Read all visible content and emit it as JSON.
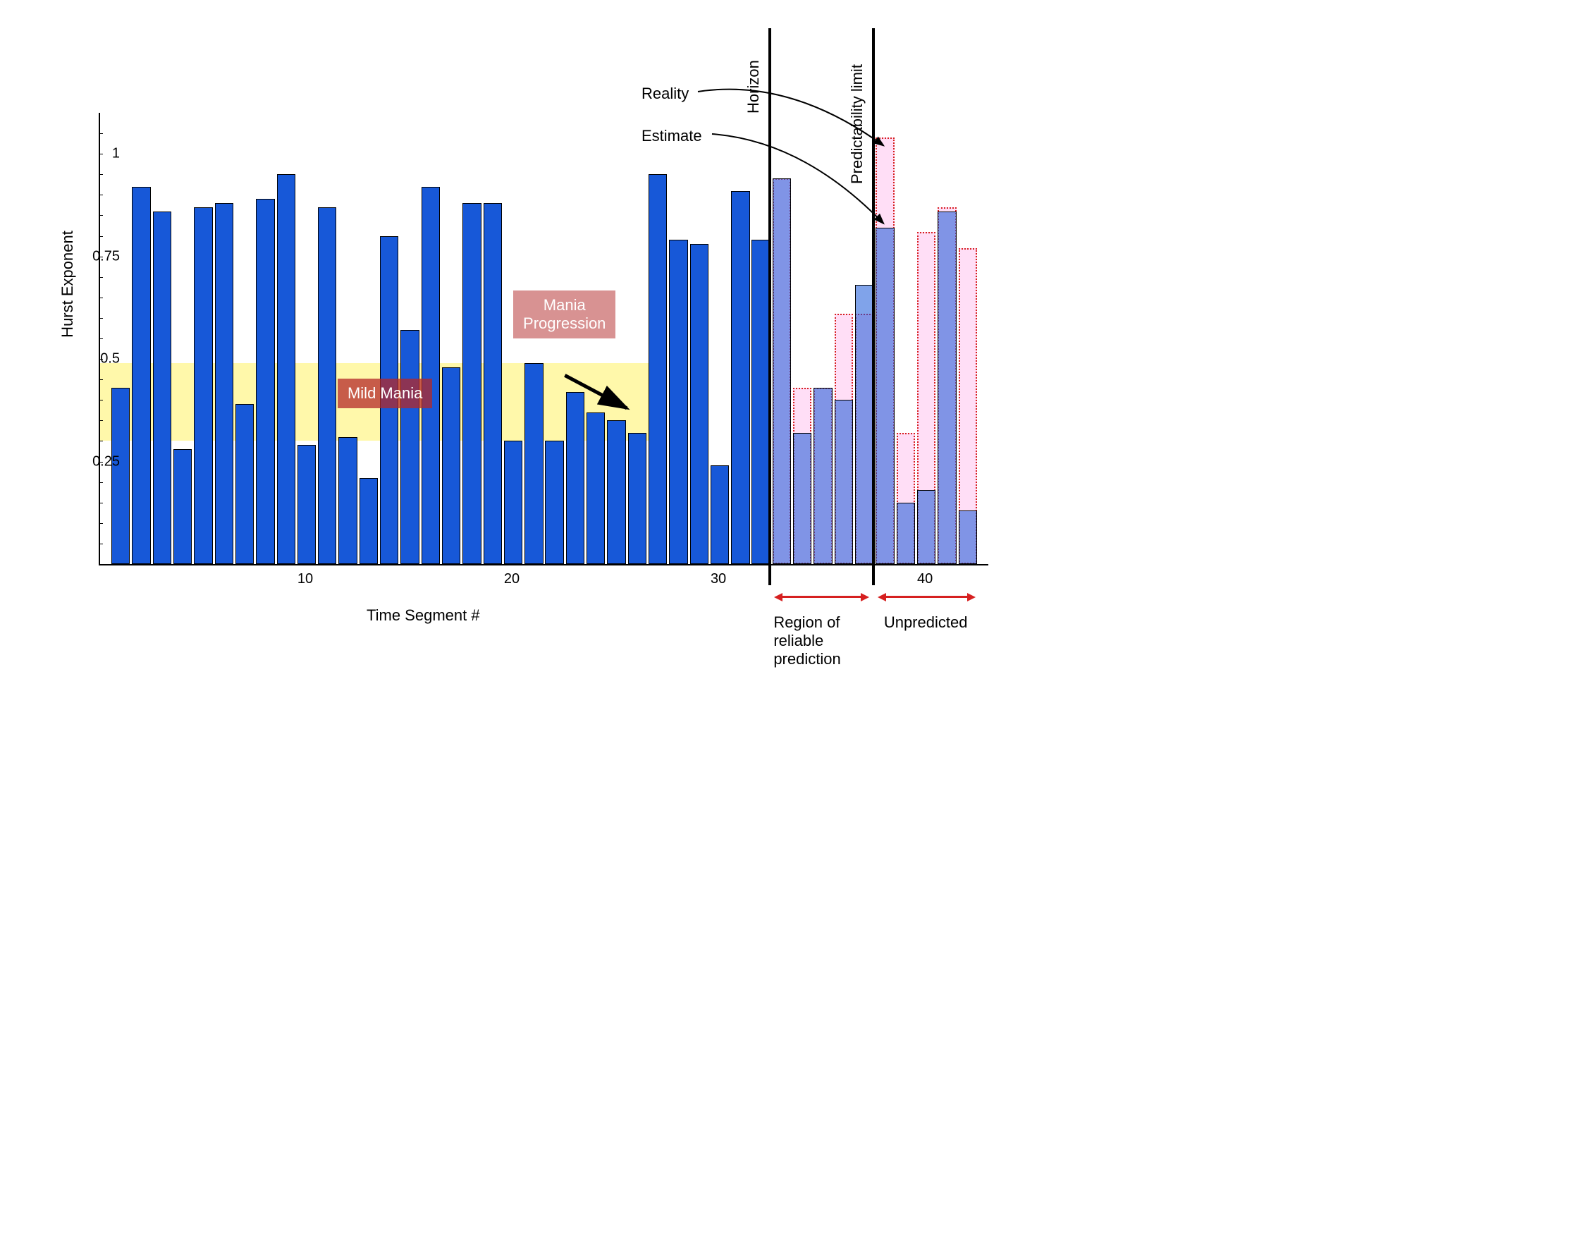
{
  "chart": {
    "type": "bar",
    "ylabel": "Hurst Exponent",
    "xlabel": "Time Segment #",
    "ylim": [
      0,
      1.1
    ],
    "yticks": [
      0.25,
      0.5,
      0.75,
      1
    ],
    "xticks": [
      10,
      20,
      30,
      40
    ],
    "n_bars": 42,
    "bar_width": 0.9,
    "blue_values": [
      0.43,
      0.92,
      0.86,
      0.28,
      0.87,
      0.88,
      0.39,
      0.89,
      0.95,
      0.29,
      0.87,
      0.31,
      0.21,
      0.8,
      0.57,
      0.92,
      0.48,
      0.88,
      0.88,
      0.3,
      0.49,
      0.3,
      0.42,
      0.37,
      0.35,
      0.32,
      0.95,
      0.79,
      0.78,
      0.24,
      0.91,
      0.79
    ],
    "bluealpha_values": [
      0.94,
      0.32,
      0.43,
      0.4,
      0.68,
      0.82,
      0.15,
      0.18,
      0.86,
      0.13
    ],
    "pink_values": [
      0.94,
      0.43,
      0.43,
      0.61,
      0.61,
      1.04,
      0.32,
      0.81,
      0.87,
      0.77
    ],
    "colors": {
      "blue": "#1758d8",
      "blue_alpha": "rgba(23,88,216,0.55)",
      "pink": "rgba(255,200,240,0.6)",
      "pink_border": "#d62020",
      "yellow_band": "rgba(255,242,100,0.55)",
      "background": "#ffffff",
      "axis": "#000000",
      "arrow_red": "#d62020"
    },
    "yellow_band": {
      "ymin": 0.3,
      "ymax": 0.49,
      "xmin": 0,
      "xmax": 27
    },
    "label_mild_mania": "Mild Mania",
    "label_mania_progression": "Mania\nProgression",
    "label_reality": "Reality",
    "label_estimate": "Estimate",
    "label_horizon": "Horizon",
    "label_predictability_limit": "Predictability limit",
    "label_region_reliable": "Region of\nreliable\nprediction",
    "label_unpredicted": "Unpredicted",
    "horizon_x": 32.5,
    "predictability_limit_x": 37.5,
    "fontsize_axis_label": 22,
    "fontsize_tick": 20,
    "fontsize_annotation": 22
  }
}
